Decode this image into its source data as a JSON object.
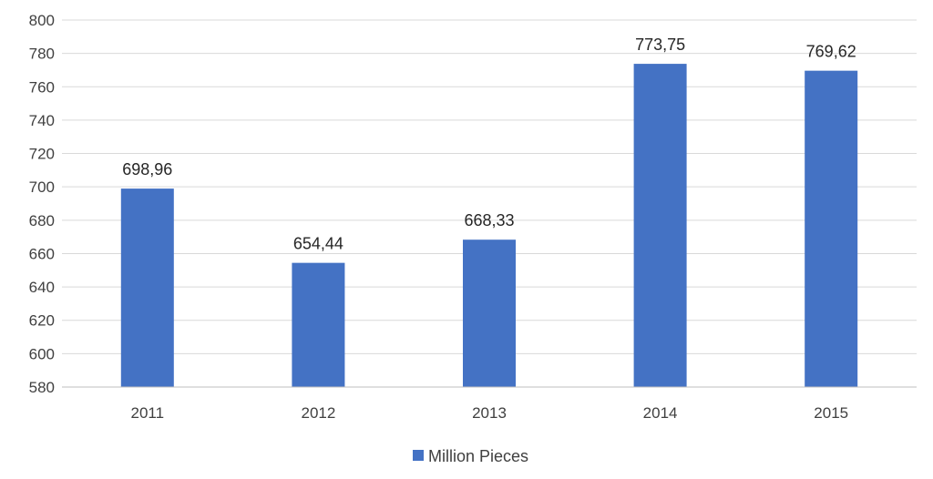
{
  "chart_data": {
    "type": "bar",
    "categories": [
      "2011",
      "2012",
      "2013",
      "2014",
      "2015"
    ],
    "series": [
      {
        "name": "Million Pieces",
        "values": [
          698.96,
          654.44,
          668.33,
          773.75,
          769.62
        ],
        "labels": [
          "698,96",
          "654,44",
          "668,33",
          "773,75",
          "769,62"
        ],
        "color": "#4472c4"
      }
    ],
    "title": "",
    "xlabel": "",
    "ylabel": "",
    "ylim": [
      580,
      800
    ],
    "yticks": [
      "580",
      "600",
      "620",
      "640",
      "660",
      "680",
      "700",
      "720",
      "740",
      "760",
      "780",
      "800"
    ],
    "grid": true,
    "legend_position": "bottom"
  }
}
